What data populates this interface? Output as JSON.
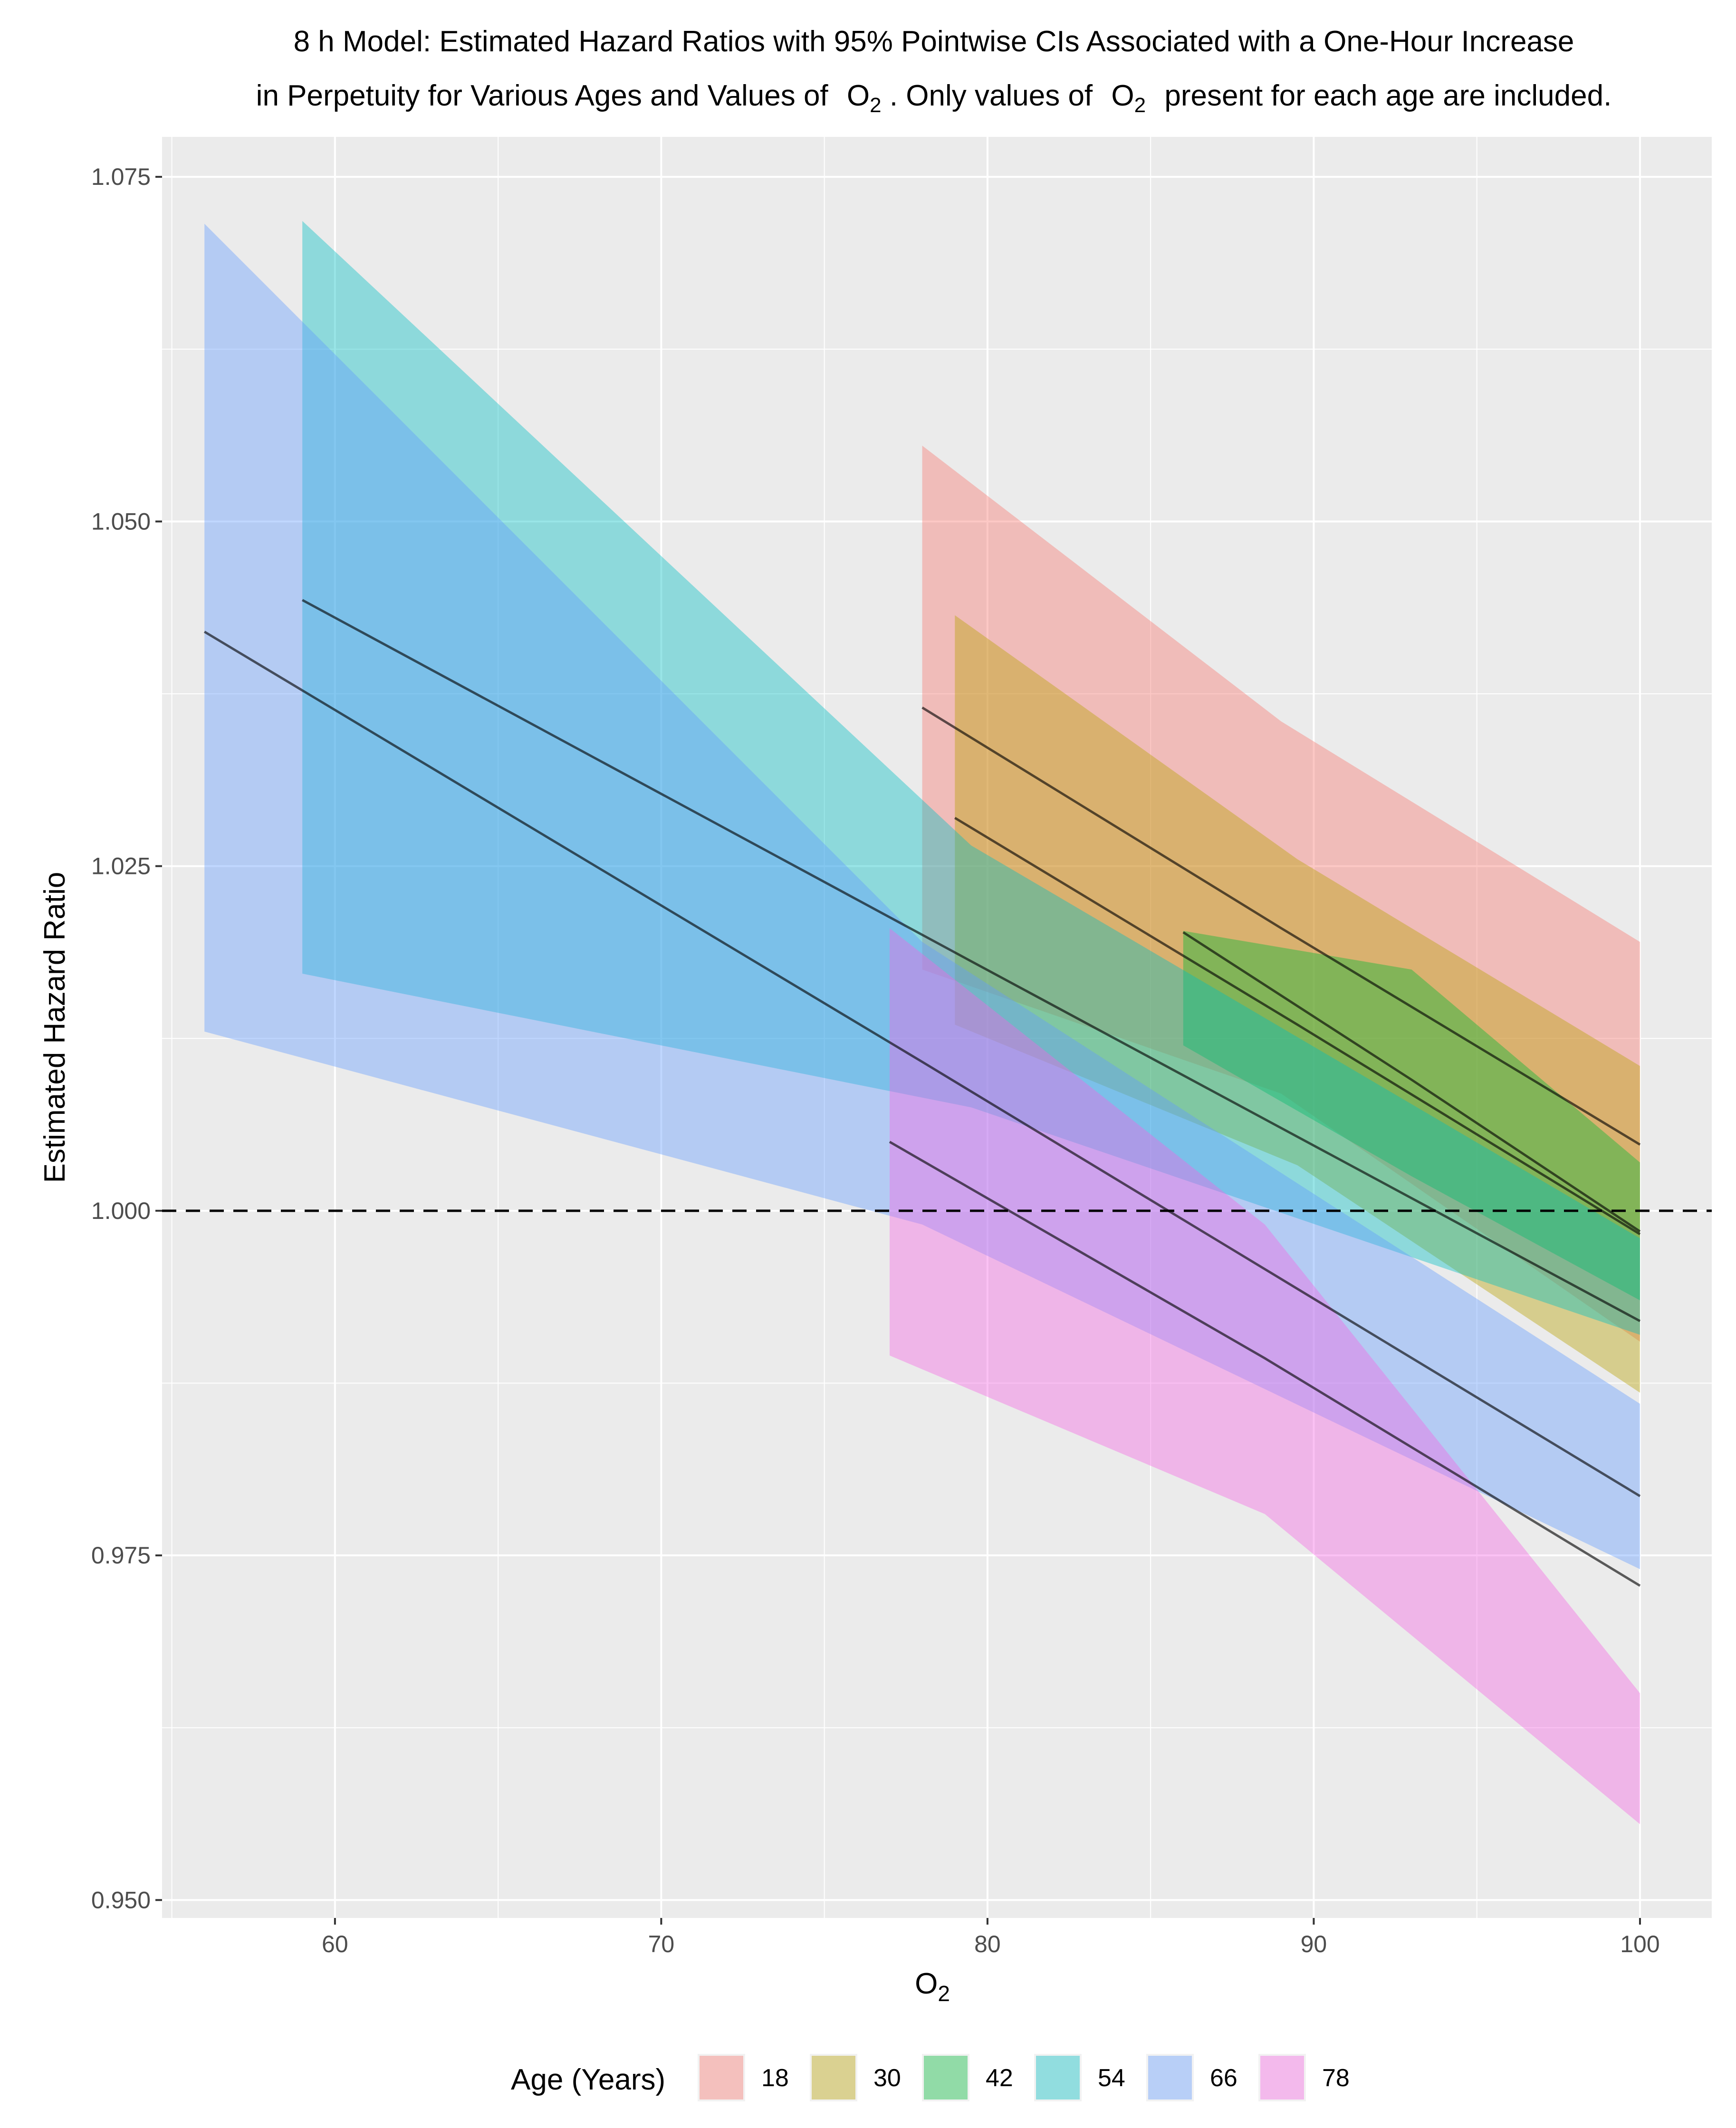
{
  "chart_data": {
    "type": "line",
    "title_line1": "8 h Model: Estimated Hazard Ratios with 95% Pointwise CIs Associated with a One-Hour Increase",
    "title_line2_part1": "in Perpetuity for Various Ages and Values of",
    "title_o": "O",
    "title_sub": "2",
    "title_line2_part2": ". Only values of",
    "title_line2_part3": "present for each age are included.",
    "xlabel_main": "O",
    "xlabel_sub": "2",
    "ylabel": "Estimated Hazard Ratio",
    "xlim": [
      54.7,
      102.2
    ],
    "ylim": [
      0.9487,
      1.0779
    ],
    "x_ticks": [
      60,
      70,
      80,
      90,
      100
    ],
    "x_tick_labels": [
      "60",
      "70",
      "80",
      "90",
      "100"
    ],
    "y_ticks": [
      0.95,
      0.975,
      1.0,
      1.025,
      1.05,
      1.075
    ],
    "y_tick_labels": [
      "0.950",
      "0.975",
      "1.000",
      "1.025",
      "1.050",
      "1.075"
    ],
    "reference_line": 1.0,
    "legend_title": "Age (Years)",
    "series": [
      {
        "name": "18",
        "color": "#F8766D",
        "x": [
          78,
          89,
          100
        ],
        "estimate": [
          1.0365,
          1.0205,
          1.0048
        ],
        "lower": [
          1.0175,
          1.0085,
          0.9905
        ],
        "upper": [
          1.0555,
          1.0355,
          1.0195
        ]
      },
      {
        "name": "30",
        "color": "#B79F00",
        "x": [
          79,
          89.5,
          100
        ],
        "estimate": [
          1.0285,
          1.0135,
          0.9983
        ],
        "lower": [
          1.0135,
          1.0033,
          0.9868
        ],
        "upper": [
          1.0432,
          1.0255,
          1.0105
        ]
      },
      {
        "name": "42",
        "color": "#00BA38",
        "x": [
          86,
          93,
          100
        ],
        "estimate": [
          1.0202,
          1.0095,
          0.9985
        ],
        "lower": [
          1.012,
          1.0025,
          0.9935
        ],
        "upper": [
          1.0203,
          1.0175,
          1.0035
        ]
      },
      {
        "name": "54",
        "color": "#00BFC4",
        "x": [
          59,
          79.5,
          100
        ],
        "estimate": [
          1.0443,
          1.0181,
          0.992
        ],
        "lower": [
          1.0172,
          1.0075,
          0.991
        ],
        "upper": [
          1.0718,
          1.0265,
          0.998
        ]
      },
      {
        "name": "66",
        "color": "#619CFF",
        "x": [
          56,
          78,
          100
        ],
        "estimate": [
          1.042,
          1.0108,
          0.9793
        ],
        "lower": [
          1.013,
          0.999,
          0.974
        ],
        "upper": [
          1.0716,
          1.0195,
          0.986
        ]
      },
      {
        "name": "78",
        "color": "#F564E3",
        "x": [
          77,
          88.5,
          100
        ],
        "estimate": [
          1.005,
          0.9893,
          0.9728
        ],
        "lower": [
          0.9895,
          0.978,
          0.9555
        ],
        "upper": [
          1.0205,
          0.999,
          0.965
        ]
      }
    ]
  }
}
